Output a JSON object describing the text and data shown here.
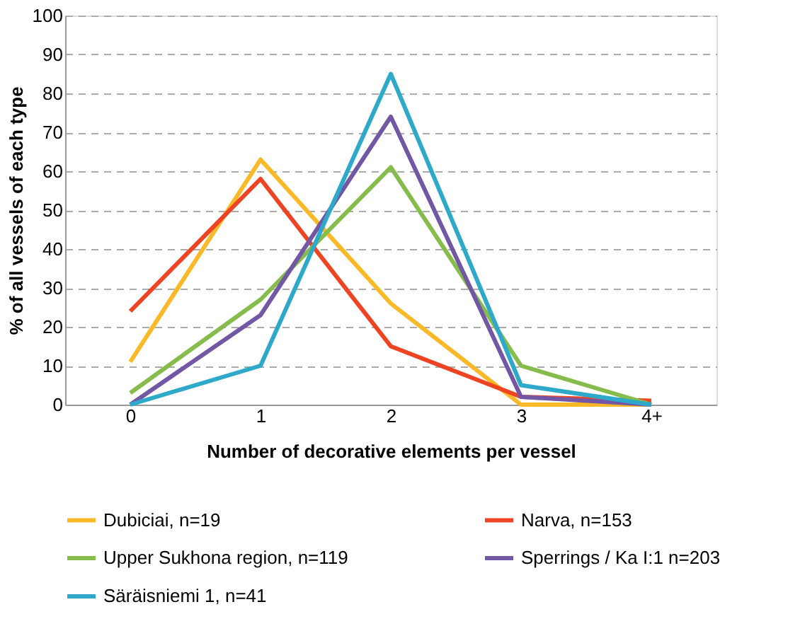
{
  "chart_data": {
    "type": "line",
    "xlabel": "Number of decorative elements per vessel",
    "ylabel": "% of all vessels of each type",
    "categories": [
      "0",
      "1",
      "2",
      "3",
      "4+"
    ],
    "series": [
      {
        "name": "Dubiciai, n=19",
        "color": "#fbb827",
        "values": [
          11,
          63,
          26,
          0,
          0
        ]
      },
      {
        "name": "Narva, n=153",
        "color": "#ef4423",
        "values": [
          24,
          58,
          15,
          2,
          1
        ]
      },
      {
        "name": "Upper Sukhona region, n=119",
        "color": "#86bc4b",
        "values": [
          3,
          27,
          61,
          10,
          0
        ]
      },
      {
        "name": "Sperrings / Ka I:1 n=203",
        "color": "#7157a4",
        "values": [
          0,
          23,
          74,
          2,
          0
        ]
      },
      {
        "name": "Säräisniemi 1, n=41",
        "color": "#2ea9c9",
        "values": [
          0,
          10,
          85,
          5,
          0
        ]
      }
    ],
    "ylim": [
      0,
      100
    ],
    "yticks": [
      0,
      10,
      20,
      30,
      40,
      50,
      60,
      70,
      80,
      90,
      100
    ],
    "grid": "y",
    "legend": "bottom",
    "marker": "none",
    "line_style": "solid"
  }
}
